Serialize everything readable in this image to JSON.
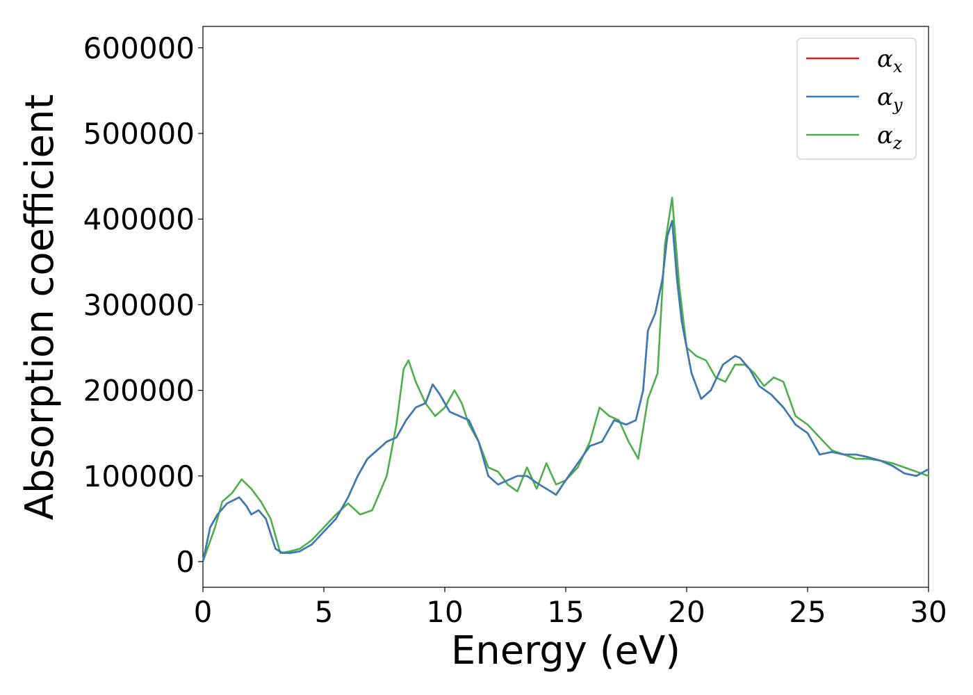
{
  "chart_data": {
    "type": "line",
    "xlabel": "Energy (eV)",
    "ylabel": "Absorption coefficient",
    "xlim": [
      0,
      30
    ],
    "ylim": [
      -30000,
      625000
    ],
    "xticks": [
      0,
      5,
      10,
      15,
      20,
      25,
      30
    ],
    "yticks": [
      0,
      100000,
      200000,
      300000,
      400000,
      500000,
      600000
    ],
    "grid": false,
    "legend_position": "top-right",
    "series": [
      {
        "name": "αx",
        "label_base": "α",
        "label_sub": "x",
        "color": "#e41a1c",
        "x": [
          0,
          0.3,
          0.6,
          1,
          1.5,
          1.8,
          2,
          2.3,
          2.6,
          3,
          3.3,
          3.6,
          4,
          4.5,
          5,
          5.5,
          6,
          6.4,
          6.8,
          7.2,
          7.6,
          8,
          8.4,
          8.8,
          9.2,
          9.5,
          9.8,
          10.2,
          10.6,
          11,
          11.4,
          11.8,
          12.2,
          12.6,
          13,
          13.4,
          13.8,
          14.2,
          14.6,
          15,
          15.5,
          16,
          16.5,
          17,
          17.5,
          17.9,
          18.2,
          18.4,
          18.7,
          19,
          19.2,
          19.4,
          19.6,
          19.8,
          20.2,
          20.6,
          21,
          21.5,
          22,
          22.2,
          22.6,
          23,
          23.5,
          24,
          24.5,
          25,
          25.5,
          26,
          26.5,
          27,
          27.5,
          28,
          28.5,
          29,
          29.5,
          30
        ],
        "y": [
          0,
          40000,
          55000,
          68000,
          75000,
          65000,
          55000,
          60000,
          50000,
          15000,
          10000,
          10000,
          12000,
          20000,
          35000,
          50000,
          75000,
          100000,
          120000,
          130000,
          140000,
          145000,
          165000,
          180000,
          185000,
          207000,
          195000,
          175000,
          170000,
          165000,
          140000,
          100000,
          90000,
          95000,
          100000,
          100000,
          92000,
          85000,
          78000,
          95000,
          115000,
          135000,
          140000,
          165000,
          160000,
          165000,
          200000,
          270000,
          290000,
          330000,
          380000,
          398000,
          330000,
          280000,
          220000,
          190000,
          200000,
          230000,
          240000,
          238000,
          225000,
          205000,
          195000,
          180000,
          160000,
          150000,
          125000,
          128000,
          125000,
          125000,
          122000,
          118000,
          112000,
          103000,
          100000,
          108000
        ]
      },
      {
        "name": "αy",
        "label_base": "α",
        "label_sub": "y",
        "color": "#377eb8",
        "x": [
          0,
          0.3,
          0.6,
          1,
          1.5,
          1.8,
          2,
          2.3,
          2.6,
          3,
          3.3,
          3.6,
          4,
          4.5,
          5,
          5.5,
          6,
          6.4,
          6.8,
          7.2,
          7.6,
          8,
          8.4,
          8.8,
          9.2,
          9.5,
          9.8,
          10.2,
          10.6,
          11,
          11.4,
          11.8,
          12.2,
          12.6,
          13,
          13.4,
          13.8,
          14.2,
          14.6,
          15,
          15.5,
          16,
          16.5,
          17,
          17.5,
          17.9,
          18.2,
          18.4,
          18.7,
          19,
          19.2,
          19.4,
          19.6,
          19.8,
          20.2,
          20.6,
          21,
          21.5,
          22,
          22.2,
          22.6,
          23,
          23.5,
          24,
          24.5,
          25,
          25.5,
          26,
          26.5,
          27,
          27.5,
          28,
          28.5,
          29,
          29.5,
          30
        ],
        "y": [
          0,
          40000,
          55000,
          68000,
          75000,
          65000,
          55000,
          60000,
          50000,
          15000,
          10000,
          10000,
          12000,
          20000,
          35000,
          50000,
          75000,
          100000,
          120000,
          130000,
          140000,
          145000,
          165000,
          180000,
          185000,
          207000,
          195000,
          175000,
          170000,
          165000,
          140000,
          100000,
          90000,
          95000,
          100000,
          100000,
          92000,
          85000,
          78000,
          95000,
          115000,
          135000,
          140000,
          165000,
          160000,
          165000,
          200000,
          270000,
          290000,
          330000,
          380000,
          398000,
          330000,
          280000,
          220000,
          190000,
          200000,
          230000,
          240000,
          238000,
          225000,
          205000,
          195000,
          180000,
          160000,
          150000,
          125000,
          128000,
          125000,
          125000,
          122000,
          118000,
          112000,
          103000,
          100000,
          108000
        ]
      },
      {
        "name": "αz",
        "label_base": "α",
        "label_sub": "z",
        "color": "#4daf4a",
        "x": [
          0,
          0.5,
          0.8,
          1.2,
          1.6,
          2,
          2.4,
          2.8,
          3.2,
          3.6,
          4,
          4.5,
          5,
          5.5,
          6,
          6.5,
          7,
          7.3,
          7.6,
          8,
          8.3,
          8.5,
          8.8,
          9.2,
          9.6,
          10,
          10.4,
          10.7,
          11,
          11.4,
          11.8,
          12.2,
          12.6,
          13,
          13.4,
          13.8,
          14.2,
          14.6,
          15,
          15.5,
          16,
          16.4,
          16.8,
          17.2,
          17.6,
          18,
          18.4,
          18.8,
          19.1,
          19.4,
          19.7,
          20,
          20.4,
          20.8,
          21.2,
          21.6,
          22,
          22.4,
          22.8,
          23.2,
          23.6,
          24,
          24.5,
          25,
          25.5,
          26,
          26.5,
          27,
          27.5,
          28,
          28.5,
          29,
          29.5,
          30
        ],
        "y": [
          0,
          40000,
          70000,
          80000,
          96000,
          85000,
          70000,
          50000,
          10000,
          12000,
          15000,
          25000,
          40000,
          55000,
          68000,
          55000,
          60000,
          80000,
          100000,
          160000,
          225000,
          235000,
          210000,
          185000,
          170000,
          180000,
          200000,
          185000,
          160000,
          140000,
          110000,
          105000,
          90000,
          82000,
          110000,
          85000,
          115000,
          90000,
          95000,
          110000,
          140000,
          180000,
          170000,
          165000,
          140000,
          120000,
          190000,
          220000,
          370000,
          425000,
          320000,
          250000,
          240000,
          235000,
          215000,
          210000,
          230000,
          230000,
          220000,
          205000,
          215000,
          210000,
          170000,
          160000,
          145000,
          130000,
          125000,
          120000,
          120000,
          118000,
          115000,
          110000,
          105000,
          100000
        ]
      }
    ]
  }
}
